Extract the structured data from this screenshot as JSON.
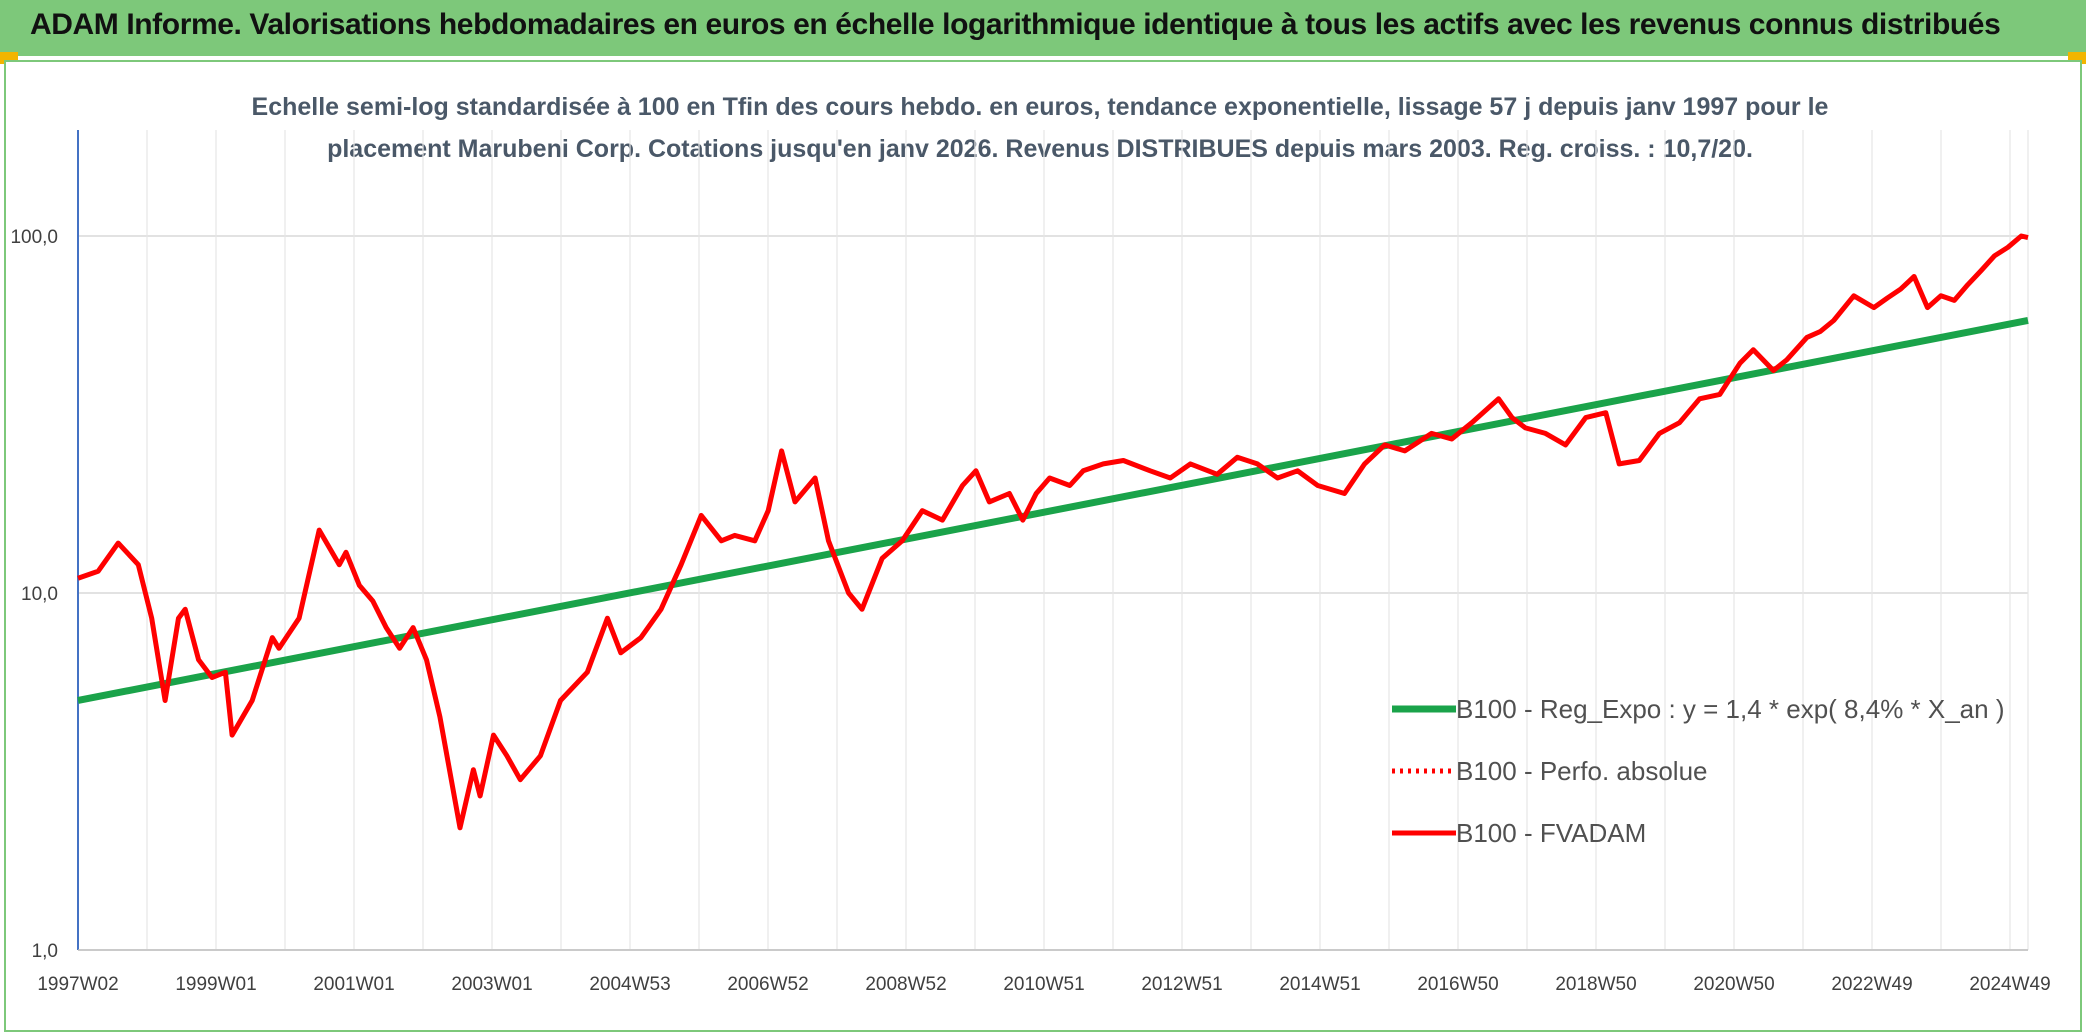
{
  "header": {
    "title": "ADAM Informe. Valorisations hebdomadaires en euros en échelle logarithmique identique à tous les actifs avec les revenus connus distribués"
  },
  "colors": {
    "banner": "#7dc87a",
    "regression": "#1aa34a",
    "fvadam": "#ff0000",
    "perfo": "#ff0000",
    "grid": "#d9d9d9",
    "corner": "#f2b500"
  },
  "chart_data": {
    "type": "line",
    "subtitle_line1": "Echelle semi-log standardisée à 100 en Tfin des cours hebdo. en euros, tendance exponentielle, lissage 57 j depuis janv 1997 pour le",
    "subtitle_line2": "placement Marubeni Corp. Cotations jusqu'en janv 2026. Revenus DISTRIBUES depuis mars 2003. Reg. croiss. : 10,7/20.",
    "y_scale": "log",
    "ylim": [
      1,
      200
    ],
    "y_ticks": [
      "1,0",
      "10,0",
      "100,0"
    ],
    "x_tick_labels": [
      "1997W02",
      "1999W01",
      "2001W01",
      "2003W01",
      "2004W53",
      "2006W52",
      "2008W52",
      "2010W51",
      "2012W51",
      "2014W51",
      "2016W50",
      "2018W50",
      "2020W50",
      "2022W49",
      "2024W49"
    ],
    "xlim": [
      1997.0,
      2026.1
    ],
    "grid": true,
    "legend_position": "right",
    "legend": [
      {
        "label": "B100 - Reg_Expo : y = 1,4 * exp( 8,4% *  X_an )",
        "style": "solid-thick",
        "color": "#1aa34a"
      },
      {
        "label": "B100 - Perfo. absolue",
        "style": "dotted",
        "color": "#ff0000"
      },
      {
        "label": "B100 - FVADAM",
        "style": "solid",
        "color": "#ff0000"
      }
    ],
    "series": [
      {
        "name": "B100 - Reg_Expo : y = 1,4 * exp( 8,4% *  X_an )",
        "x": [
          1997.0,
          2026.1
        ],
        "y": [
          5.0,
          58.0
        ]
      },
      {
        "name": "B100 - FVADAM",
        "x": [
          1997.0,
          1997.3,
          1997.6,
          1997.9,
          1998.1,
          1998.3,
          1998.5,
          1998.6,
          1998.8,
          1999.0,
          1999.2,
          1999.3,
          1999.6,
          1999.9,
          2000.0,
          2000.3,
          2000.6,
          2000.9,
          2001.0,
          2001.2,
          2001.4,
          2001.6,
          2001.8,
          2002.0,
          2002.2,
          2002.4,
          2002.7,
          2002.9,
          2003.0,
          2003.2,
          2003.4,
          2003.6,
          2003.9,
          2004.2,
          2004.6,
          2004.9,
          2005.1,
          2005.4,
          2005.7,
          2006.0,
          2006.3,
          2006.6,
          2006.8,
          2007.1,
          2007.3,
          2007.5,
          2007.7,
          2008.0,
          2008.2,
          2008.5,
          2008.7,
          2009.0,
          2009.3,
          2009.6,
          2009.9,
          2010.2,
          2010.4,
          2010.6,
          2010.9,
          2011.1,
          2011.3,
          2011.5,
          2011.8,
          2012.0,
          2012.3,
          2012.6,
          2013.0,
          2013.3,
          2013.6,
          2014.0,
          2014.3,
          2014.6,
          2014.9,
          2015.2,
          2015.5,
          2015.9,
          2016.2,
          2016.5,
          2016.8,
          2017.2,
          2017.5,
          2017.8,
          2018.2,
          2018.4,
          2018.6,
          2018.9,
          2019.2,
          2019.5,
          2019.8,
          2020.0,
          2020.3,
          2020.6,
          2020.9,
          2021.2,
          2021.5,
          2021.8,
          2022.0,
          2022.3,
          2022.5,
          2022.8,
          2023.0,
          2023.2,
          2023.5,
          2023.8,
          2024.0,
          2024.2,
          2024.4,
          2024.6,
          2024.8,
          2025.0,
          2025.2,
          2025.4,
          2025.6,
          2025.8,
          2026.0,
          2026.1
        ],
        "y": [
          11.0,
          11.5,
          13.8,
          12.0,
          8.5,
          5.0,
          8.5,
          9.0,
          6.5,
          5.8,
          6.0,
          4.0,
          5.0,
          7.5,
          7.0,
          8.5,
          15.0,
          12.0,
          13.0,
          10.5,
          9.5,
          8.0,
          7.0,
          8.0,
          6.5,
          4.5,
          2.2,
          3.2,
          2.7,
          4.0,
          3.5,
          3.0,
          3.5,
          5.0,
          6.0,
          8.5,
          6.8,
          7.5,
          9.0,
          12.0,
          16.5,
          14.0,
          14.5,
          14.0,
          17.0,
          25.0,
          18.0,
          21.0,
          14.0,
          10.0,
          9.0,
          12.5,
          14.0,
          17.0,
          16.0,
          20.0,
          22.0,
          18.0,
          19.0,
          16.0,
          19.0,
          21.0,
          20.0,
          22.0,
          23.0,
          23.5,
          22.0,
          21.0,
          23.0,
          21.5,
          24.0,
          23.0,
          21.0,
          22.0,
          20.0,
          19.0,
          23.0,
          26.0,
          25.0,
          28.0,
          27.0,
          30.0,
          35.0,
          31.0,
          29.0,
          28.0,
          26.0,
          31.0,
          32.0,
          23.0,
          23.5,
          28.0,
          30.0,
          35.0,
          36.0,
          44.0,
          48.0,
          42.0,
          45.0,
          52.0,
          54.0,
          58.0,
          68.0,
          63.0,
          67.0,
          71.0,
          77.0,
          63.0,
          68.0,
          66.0,
          73.0,
          80.0,
          88.0,
          93.0,
          100.0,
          99.0
        ]
      }
    ]
  }
}
